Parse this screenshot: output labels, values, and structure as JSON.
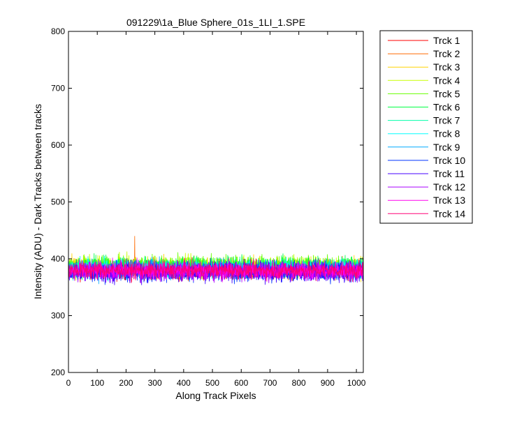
{
  "chart_data": {
    "type": "line",
    "title": "091229\\1a_Blue Sphere_01s_1LI_1.SPE",
    "xlabel": "Along Track Pixels",
    "ylabel": "Intensity (ADU) - Dark Tracks between tracks",
    "xlim": [
      0,
      1024
    ],
    "ylim": [
      200,
      800
    ],
    "xticks": [
      0,
      100,
      200,
      300,
      400,
      500,
      600,
      700,
      800,
      900,
      1000
    ],
    "yticks": [
      200,
      300,
      400,
      500,
      600,
      700,
      800
    ],
    "grid": false,
    "legend_position": "outside-right",
    "x": {
      "start": 1,
      "end": 1024,
      "step": 1
    },
    "series": [
      {
        "name": "Trck 1",
        "color": "#ff0000",
        "mean": 380,
        "noise": 15
      },
      {
        "name": "Trck 2",
        "color": "#ff6a00",
        "mean": 382,
        "noise": 15,
        "spike": {
          "x": 230,
          "y": 440
        }
      },
      {
        "name": "Trck 3",
        "color": "#ffd400",
        "mean": 385,
        "noise": 16
      },
      {
        "name": "Trck 4",
        "color": "#c8ff00",
        "mean": 387,
        "noise": 16
      },
      {
        "name": "Trck 5",
        "color": "#66ff00",
        "mean": 388,
        "noise": 16
      },
      {
        "name": "Trck 6",
        "color": "#00ff44",
        "mean": 386,
        "noise": 16
      },
      {
        "name": "Trck 7",
        "color": "#00ffaa",
        "mean": 384,
        "noise": 15
      },
      {
        "name": "Trck 8",
        "color": "#00ffff",
        "mean": 382,
        "noise": 15
      },
      {
        "name": "Trck 9",
        "color": "#00aaff",
        "mean": 380,
        "noise": 15
      },
      {
        "name": "Trck 10",
        "color": "#0033ff",
        "mean": 378,
        "noise": 16
      },
      {
        "name": "Trck 11",
        "color": "#4400ff",
        "mean": 377,
        "noise": 16
      },
      {
        "name": "Trck 12",
        "color": "#aa00ff",
        "mean": 378,
        "noise": 15
      },
      {
        "name": "Trck 13",
        "color": "#ff00ee",
        "mean": 379,
        "noise": 15
      },
      {
        "name": "Trck 14",
        "color": "#ff0077",
        "mean": 380,
        "noise": 14
      }
    ]
  }
}
